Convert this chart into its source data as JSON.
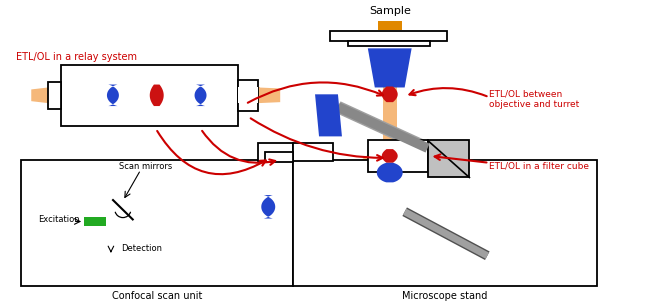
{
  "bg_color": "#ffffff",
  "red_text": "#cc0000",
  "black": "#000000",
  "beam": "#f5b87a",
  "blue": "#2244cc",
  "red": "#cc1111",
  "green": "#22aa22",
  "gray_dark": "#606060",
  "gray_mid": "#a0a0a0",
  "gray_light": "#c0c0c0",
  "orange": "#e08800",
  "label_relay": "ETL/OL in a relay system",
  "label_objective": "ETL/OL between\nobjective and turret",
  "label_filter": "ETL/OL in a filter cube",
  "label_sample": "Sample",
  "label_confocal": "Confocal scan unit",
  "label_microscope": "Microscope stand",
  "label_scan_mirrors": "Scan mirrors",
  "label_excitation": "Excitation",
  "label_detection": "Detection"
}
